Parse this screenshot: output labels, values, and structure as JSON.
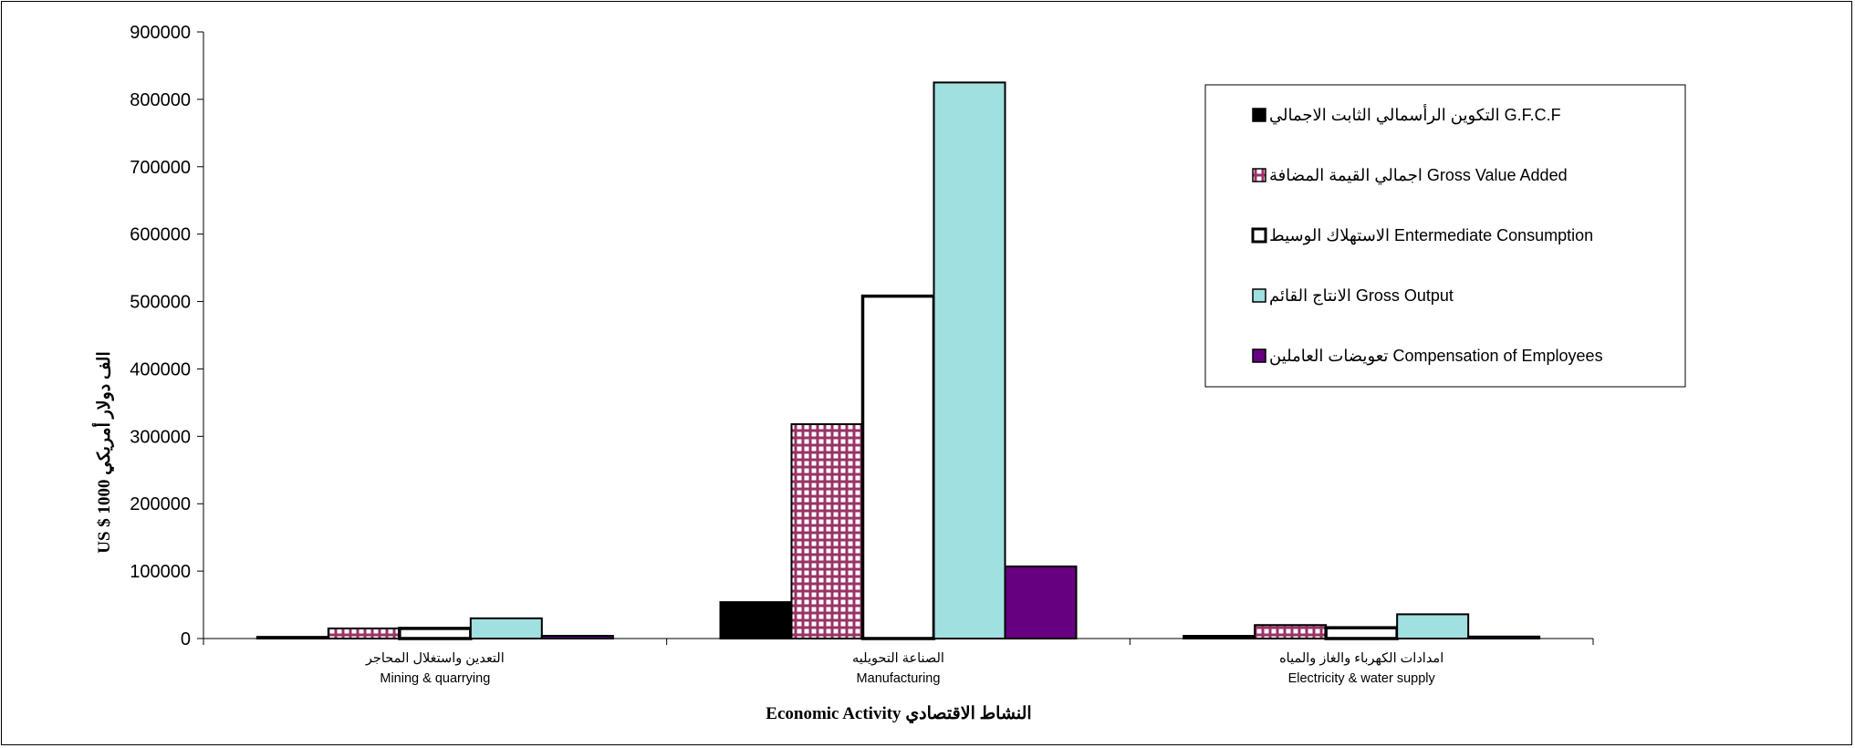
{
  "chart_data": {
    "type": "bar",
    "title": "",
    "xlabel": "Economic Activity   النشاط الاقتصادي",
    "ylabel": "US $ 1000 الف دولار أمريكي",
    "ylim": [
      0,
      900000
    ],
    "yticks": [
      "0",
      "100000",
      "200000",
      "300000",
      "400000",
      "500000",
      "600000",
      "700000",
      "800000",
      "900000"
    ],
    "legend_position": "top-right",
    "categories": [
      {
        "ar": "التعدين واستغلال المحاجر",
        "en": "Mining & quarrying"
      },
      {
        "ar": "الصناعة التحويليه",
        "en": "Manufacturing"
      },
      {
        "ar": "امدادات الكهرباء والغاز والمياه",
        "en": "Electricity & water supply"
      }
    ],
    "series": [
      {
        "name": "التكوين الرأسمالي الثابت الاجمالي G.F.C.F",
        "values": [
          2500,
          54000,
          4000
        ],
        "color": "#000000",
        "pattern": "solid"
      },
      {
        "name": "اجمالي القيمة المضافة Gross Value Added",
        "values": [
          15000,
          318000,
          20000
        ],
        "color": "#993366",
        "pattern": "grid"
      },
      {
        "name": "الاستهلاك الوسيط Entermediate Consumption",
        "values": [
          15000,
          508000,
          16000
        ],
        "color": "#ffffff",
        "pattern": "outline"
      },
      {
        "name": "الانتاج القائم Gross Output",
        "values": [
          30000,
          825000,
          36000
        ],
        "color": "#a0e0e0",
        "pattern": "solid"
      },
      {
        "name": "تعويضات العاملين Compensation of Employees",
        "values": [
          4000,
          107000,
          3000
        ],
        "color": "#660080",
        "pattern": "solid"
      }
    ]
  }
}
